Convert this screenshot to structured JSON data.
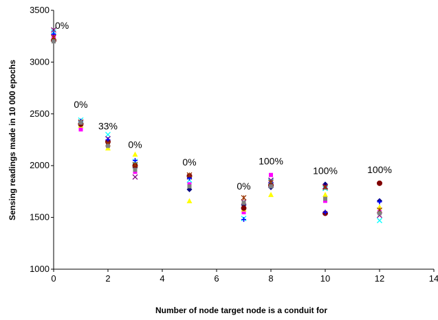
{
  "chart_data": {
    "type": "scatter",
    "title": "",
    "xlabel": "Number of node target node is a conduit for",
    "ylabel": "Sensing readings made in 10 000 epochs",
    "xlim": [
      0,
      14
    ],
    "ylim": [
      1000,
      3500
    ],
    "xticks": [
      0,
      2,
      4,
      6,
      8,
      10,
      12,
      14
    ],
    "yticks": [
      1000,
      1500,
      2000,
      2500,
      3000,
      3500
    ],
    "grid": false,
    "legend": "none",
    "series": [
      {
        "marker": "diamond",
        "color": "#000080",
        "points": [
          [
            0,
            3220
          ],
          [
            1,
            2410
          ],
          [
            2,
            2240
          ],
          [
            3,
            1980
          ],
          [
            5,
            1770
          ],
          [
            7,
            1620
          ],
          [
            8,
            1790
          ],
          [
            10,
            1820
          ],
          [
            12,
            1660
          ]
        ]
      },
      {
        "marker": "square",
        "color": "#ff00ff",
        "points": [
          [
            0,
            3250
          ],
          [
            1,
            2350
          ],
          [
            2,
            2200
          ],
          [
            3,
            1940
          ],
          [
            5,
            1820
          ],
          [
            7,
            1550
          ],
          [
            8,
            1910
          ],
          [
            10,
            1660
          ],
          [
            12,
            1550
          ]
        ]
      },
      {
        "marker": "triangle",
        "color": "#ffff00",
        "points": [
          [
            0,
            3230
          ],
          [
            1,
            2390
          ],
          [
            2,
            2170
          ],
          [
            3,
            2110
          ],
          [
            5,
            1660
          ],
          [
            7,
            1580
          ],
          [
            8,
            1720
          ],
          [
            10,
            1720
          ],
          [
            12,
            1600
          ]
        ]
      },
      {
        "marker": "x",
        "color": "#00ffff",
        "points": [
          [
            0,
            3290
          ],
          [
            1,
            2440
          ],
          [
            2,
            2300
          ],
          [
            3,
            2040
          ],
          [
            5,
            1860
          ],
          [
            7,
            1490
          ],
          [
            8,
            1850
          ],
          [
            10,
            1780
          ],
          [
            12,
            1470
          ]
        ]
      },
      {
        "marker": "x",
        "color": "#800080",
        "points": [
          [
            0,
            3310
          ],
          [
            1,
            2420
          ],
          [
            2,
            2260
          ],
          [
            3,
            1890
          ],
          [
            5,
            1890
          ],
          [
            7,
            1650
          ],
          [
            8,
            1860
          ],
          [
            10,
            1800
          ],
          [
            12,
            1520
          ]
        ]
      },
      {
        "marker": "circle",
        "color": "#800000",
        "points": [
          [
            0,
            3210
          ],
          [
            1,
            2400
          ],
          [
            2,
            2230
          ],
          [
            3,
            2000
          ],
          [
            5,
            1900
          ],
          [
            7,
            1590
          ],
          [
            8,
            1810
          ],
          [
            10,
            1540
          ],
          [
            12,
            1830
          ]
        ]
      },
      {
        "marker": "plus",
        "color": "#0000ff",
        "points": [
          [
            0,
            3270
          ],
          [
            1,
            2430
          ],
          [
            2,
            2250
          ],
          [
            3,
            2050
          ],
          [
            5,
            1880
          ],
          [
            7,
            1480
          ],
          [
            8,
            1830
          ],
          [
            10,
            1550
          ],
          [
            12,
            1650
          ]
        ]
      },
      {
        "marker": "star",
        "color": "#993300",
        "points": [
          [
            0,
            3240
          ],
          [
            1,
            2420
          ],
          [
            2,
            2210
          ],
          [
            3,
            2010
          ],
          [
            5,
            1910
          ],
          [
            7,
            1690
          ],
          [
            8,
            1840
          ],
          [
            10,
            1790
          ],
          [
            12,
            1570
          ]
        ]
      },
      {
        "marker": "square",
        "color": "#808080",
        "points": [
          [
            0,
            3200
          ],
          [
            1,
            2415
          ],
          [
            2,
            2190
          ],
          [
            3,
            1960
          ],
          [
            5,
            1800
          ],
          [
            7,
            1640
          ],
          [
            8,
            1800
          ],
          [
            10,
            1680
          ],
          [
            12,
            1540
          ]
        ]
      }
    ],
    "annotations": [
      {
        "x": 0,
        "y": 3320,
        "text": "0%"
      },
      {
        "x": 1,
        "y": 2560,
        "text": "0%"
      },
      {
        "x": 2,
        "y": 2350,
        "text": "33%"
      },
      {
        "x": 3,
        "y": 2170,
        "text": "0%"
      },
      {
        "x": 5,
        "y": 2000,
        "text": "0%"
      },
      {
        "x": 7,
        "y": 1770,
        "text": "0%"
      },
      {
        "x": 8,
        "y": 2010,
        "text": "100%"
      },
      {
        "x": 10,
        "y": 1920,
        "text": "100%"
      },
      {
        "x": 12,
        "y": 1930,
        "text": "100%"
      }
    ]
  }
}
